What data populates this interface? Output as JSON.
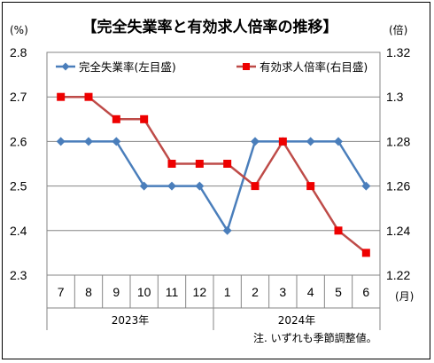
{
  "chart_data": {
    "type": "line",
    "title": "【完全失業率と有効求人倍率の推移】",
    "left_unit": "(%)",
    "right_unit": "(倍)",
    "x_unit": "(月)",
    "note": "注. いずれも季節調整値。",
    "categories": [
      "7",
      "8",
      "9",
      "10",
      "11",
      "12",
      "1",
      "2",
      "3",
      "4",
      "5",
      "6"
    ],
    "year_groups": [
      {
        "label": "2023年",
        "start": 0,
        "end": 5
      },
      {
        "label": "2024年",
        "start": 6,
        "end": 11
      }
    ],
    "left_axis": {
      "ylim": [
        2.3,
        2.8
      ],
      "ticks": [
        "2.8",
        "2.7",
        "2.6",
        "2.5",
        "2.4",
        "2.3"
      ]
    },
    "right_axis": {
      "ylim": [
        1.22,
        1.32
      ],
      "ticks": [
        "1.32",
        "1.3",
        "1.28",
        "1.26",
        "1.24",
        "1.22"
      ]
    },
    "grid": true,
    "legend_position": "top",
    "series": [
      {
        "name": "完全失業率(左目盛)",
        "axis": "left",
        "color": "#4a7ebb",
        "marker": "diamond",
        "values": [
          2.6,
          2.6,
          2.6,
          2.5,
          2.5,
          2.5,
          2.4,
          2.6,
          2.6,
          2.6,
          2.6,
          2.5
        ]
      },
      {
        "name": "有効求人倍率(右目盛)",
        "axis": "right",
        "color": "#be4b48",
        "marker": "square",
        "values": [
          1.3,
          1.3,
          1.29,
          1.29,
          1.27,
          1.27,
          1.27,
          1.26,
          1.28,
          1.26,
          1.24,
          1.23
        ]
      }
    ]
  }
}
